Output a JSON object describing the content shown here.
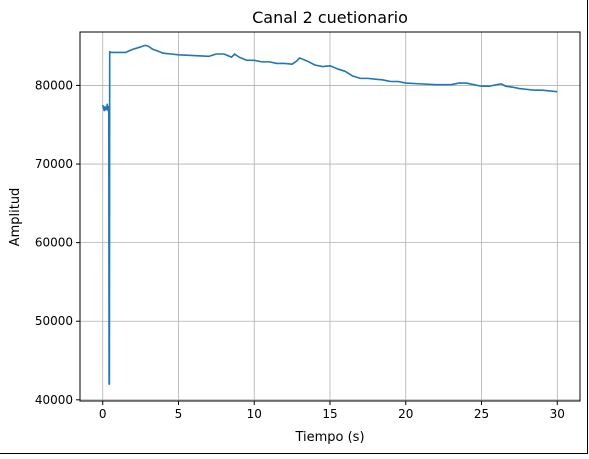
{
  "chart_data": {
    "type": "line",
    "title": "Canal 2 cuetionario",
    "xlabel": "Tiempo (s)",
    "ylabel": "Amplitud",
    "xlim": [
      -1.5,
      31.5
    ],
    "ylim": [
      39850,
      86800
    ],
    "x_ticks": [
      0,
      5,
      10,
      15,
      20,
      25,
      30
    ],
    "x_tick_labels": [
      "0",
      "5",
      "10",
      "15",
      "20",
      "25",
      "30"
    ],
    "y_ticks": [
      40000,
      50000,
      60000,
      70000,
      80000
    ],
    "y_tick_labels": [
      "40000",
      "50000",
      "60000",
      "70000",
      "80000"
    ],
    "grid": true,
    "legend": "none",
    "colors": {
      "line": "#1f77b4",
      "grid": "#b0b0b0",
      "axes": "#000000"
    },
    "series": [
      {
        "x": [
          0.0,
          0.1,
          0.15,
          0.2,
          0.25,
          0.3,
          0.35,
          0.4,
          0.42,
          0.44,
          0.46,
          0.48,
          0.5,
          1.0,
          1.5,
          2.0,
          2.5,
          2.8,
          3.0,
          3.3,
          3.6,
          4.0,
          4.5,
          5.0,
          6.0,
          7.0,
          7.5,
          8.0,
          8.5,
          8.7,
          9.0,
          9.5,
          10.0,
          10.5,
          11.0,
          11.5,
          12.0,
          12.5,
          12.8,
          13.0,
          13.5,
          14.0,
          14.5,
          15.0,
          15.5,
          16.0,
          16.5,
          17.0,
          17.5,
          18.0,
          18.5,
          19.0,
          19.5,
          20.0,
          21.0,
          22.0,
          23.0,
          23.5,
          24.0,
          24.5,
          25.0,
          25.5,
          26.0,
          26.3,
          26.6,
          27.0,
          27.5,
          28.0,
          28.5,
          29.0,
          29.5,
          30.0
        ],
        "y": [
          77500,
          76800,
          77300,
          76900,
          77000,
          77600,
          76800,
          77300,
          42000,
          42000,
          84300,
          84300,
          84200,
          84200,
          84200,
          84600,
          84900,
          85100,
          85000,
          84600,
          84400,
          84100,
          84000,
          83900,
          83800,
          83700,
          84000,
          84000,
          83600,
          84000,
          83600,
          83200,
          83200,
          83000,
          83000,
          82800,
          82800,
          82700,
          83100,
          83500,
          83100,
          82600,
          82400,
          82500,
          82100,
          81800,
          81200,
          80900,
          80900,
          80800,
          80700,
          80500,
          80500,
          80300,
          80200,
          80100,
          80100,
          80300,
          80300,
          80100,
          79900,
          79900,
          80100,
          80200,
          79900,
          79800,
          79600,
          79500,
          79400,
          79400,
          79300,
          79200
        ]
      }
    ]
  }
}
